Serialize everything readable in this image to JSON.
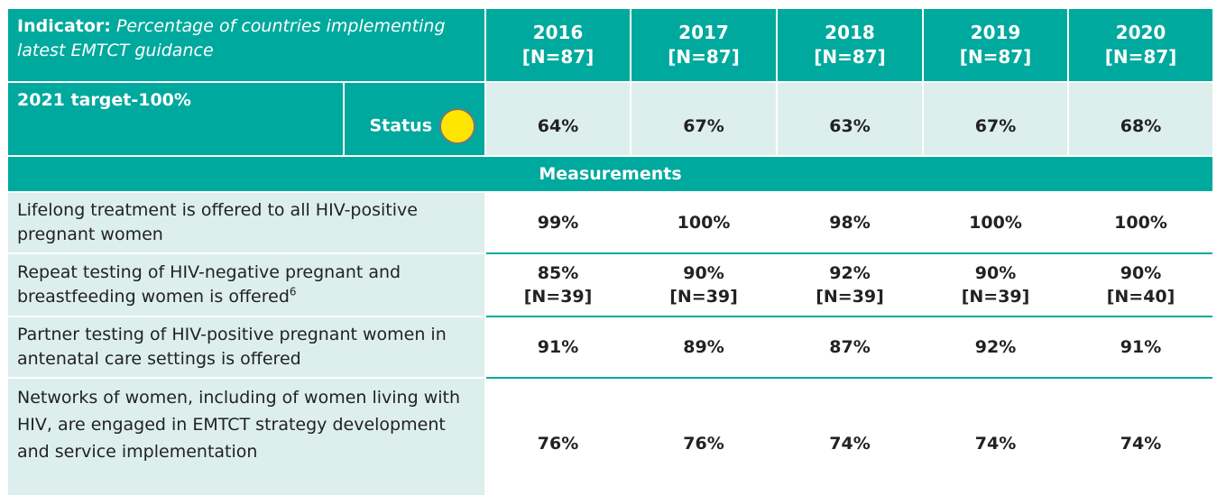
{
  "header": {
    "indicator_label": "Indicator:",
    "indicator_text": "Percentage of countries implementing latest EMTCT guidance",
    "years": [
      {
        "year": "2016",
        "n": "[N=87]"
      },
      {
        "year": "2017",
        "n": "[N=87]"
      },
      {
        "year": "2018",
        "n": "[N=87]"
      },
      {
        "year": "2019",
        "n": "[N=87]"
      },
      {
        "year": "2020",
        "n": "[N=87]"
      }
    ]
  },
  "target": {
    "label": "2021 target-100%",
    "status": "Status",
    "values": [
      "64%",
      "67%",
      "63%",
      "67%",
      "68%"
    ]
  },
  "measurements": {
    "title": "Measurements",
    "rows": [
      {
        "label": "Lifelong treatment is offered to all HIV-positive pregnant women",
        "values": [
          {
            "value": "99%"
          },
          {
            "value": "100%"
          },
          {
            "value": "98%"
          },
          {
            "value": "100%"
          },
          {
            "value": "100%"
          }
        ]
      },
      {
        "label": "Repeat testing of HIV-negative pregnant and breastfeeding women is offered",
        "footnote": "6",
        "values": [
          {
            "value": "85%",
            "n": "[N=39]"
          },
          {
            "value": "90%",
            "n": "[N=39]"
          },
          {
            "value": "92%",
            "n": "[N=39]"
          },
          {
            "value": "90%",
            "n": "[N=39]"
          },
          {
            "value": "90%",
            "n": "[N=40]"
          }
        ]
      },
      {
        "label": "Partner testing of HIV-positive pregnant women in antenatal care settings is offered",
        "values": [
          {
            "value": "91%"
          },
          {
            "value": "89%"
          },
          {
            "value": "87%"
          },
          {
            "value": "92%"
          },
          {
            "value": "91%"
          }
        ]
      },
      {
        "label": "Networks of women, including of women living with HIV, are engaged in EMTCT strategy development and service implementation",
        "values": [
          {
            "value": "76%"
          },
          {
            "value": "76%"
          },
          {
            "value": "74%"
          },
          {
            "value": "74%"
          },
          {
            "value": "74%"
          }
        ]
      }
    ]
  }
}
